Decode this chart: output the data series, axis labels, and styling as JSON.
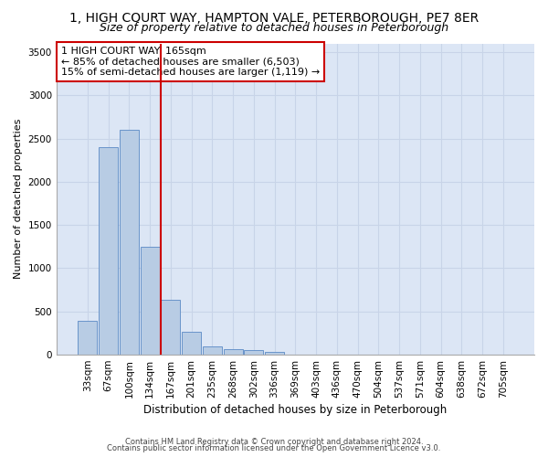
{
  "title_line1": "1, HIGH COURT WAY, HAMPTON VALE, PETERBOROUGH, PE7 8ER",
  "title_line2": "Size of property relative to detached houses in Peterborough",
  "xlabel": "Distribution of detached houses by size in Peterborough",
  "ylabel": "Number of detached properties",
  "footnote1": "Contains HM Land Registry data © Crown copyright and database right 2024.",
  "footnote2": "Contains public sector information licensed under the Open Government Licence v3.0.",
  "categories": [
    "33sqm",
    "67sqm",
    "100sqm",
    "134sqm",
    "167sqm",
    "201sqm",
    "235sqm",
    "268sqm",
    "302sqm",
    "336sqm",
    "369sqm",
    "403sqm",
    "436sqm",
    "470sqm",
    "504sqm",
    "537sqm",
    "571sqm",
    "604sqm",
    "638sqm",
    "672sqm",
    "705sqm"
  ],
  "values": [
    390,
    2400,
    2600,
    1250,
    640,
    260,
    100,
    60,
    50,
    30,
    0,
    0,
    0,
    0,
    0,
    0,
    0,
    0,
    0,
    0,
    0
  ],
  "bar_color": "#b8cce4",
  "bar_edge_color": "#5b8ac5",
  "vline_color": "#cc0000",
  "vline_x_index": 3.5,
  "annotation_text": "1 HIGH COURT WAY: 165sqm\n← 85% of detached houses are smaller (6,503)\n15% of semi-detached houses are larger (1,119) →",
  "annotation_box_color": "#cc0000",
  "ylim": [
    0,
    3600
  ],
  "yticks": [
    0,
    500,
    1000,
    1500,
    2000,
    2500,
    3000,
    3500
  ],
  "grid_color": "#c8d4e8",
  "bg_color": "#dce6f5",
  "title_fontsize": 10,
  "subtitle_fontsize": 9,
  "axis_label_fontsize": 8,
  "tick_fontsize": 7.5,
  "footnote_fontsize": 6
}
